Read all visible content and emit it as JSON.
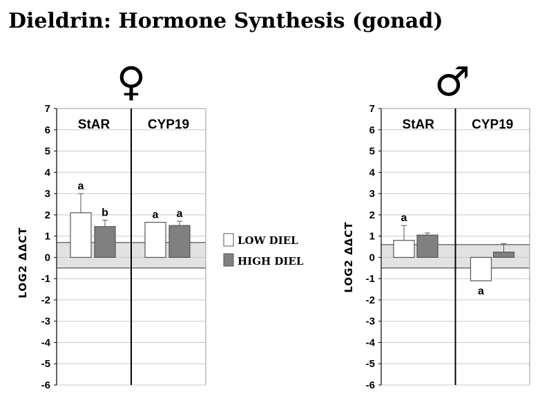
{
  "title": "Dieldrin: Hormone Synthesis (gonad)",
  "legend": [
    {
      "label": "LOW DIEL",
      "color": "#ffffff"
    },
    {
      "label": "HIGH DIEL",
      "color": "#808080"
    }
  ],
  "chart_data": [
    {
      "type": "bar",
      "panel_symbol": "♀",
      "ylabel": "LOG2 ΔΔCT",
      "ylim": [
        -6,
        7
      ],
      "yticks": [
        7,
        6,
        5,
        4,
        3,
        2,
        1,
        0,
        -1,
        -2,
        -3,
        -4,
        -5,
        -6
      ],
      "grid": true,
      "shaded_band": [
        -0.5,
        0.7
      ],
      "categories": [
        "StAR",
        "CYP19"
      ],
      "series": [
        {
          "name": "LOW DIEL",
          "color": "#ffffff",
          "values": [
            2.1,
            1.65
          ],
          "errors": [
            0.9,
            0.0
          ],
          "labels": [
            "a",
            "a"
          ]
        },
        {
          "name": "HIGH DIEL",
          "color": "#808080",
          "values": [
            1.45,
            1.5
          ],
          "errors": [
            0.3,
            0.2
          ],
          "labels": [
            "b",
            "a"
          ]
        }
      ]
    },
    {
      "type": "bar",
      "panel_symbol": "♂",
      "ylabel": "LOG2 ΔΔCT",
      "ylim": [
        -6,
        7
      ],
      "yticks": [
        7,
        6,
        5,
        4,
        3,
        2,
        1,
        0,
        -1,
        -2,
        -3,
        -4,
        -5,
        -6
      ],
      "grid": true,
      "shaded_band": [
        -0.5,
        0.6
      ],
      "categories": [
        "StAR",
        "CYP19"
      ],
      "series": [
        {
          "name": "LOW DIEL",
          "color": "#ffffff",
          "values": [
            0.8,
            -1.1
          ],
          "errors": [
            0.7,
            0.0
          ],
          "labels": [
            "a",
            "a"
          ]
        },
        {
          "name": "HIGH DIEL",
          "color": "#808080",
          "values": [
            1.05,
            0.25
          ],
          "errors": [
            0.1,
            0.4
          ],
          "labels": [
            "",
            ""
          ]
        }
      ]
    }
  ]
}
